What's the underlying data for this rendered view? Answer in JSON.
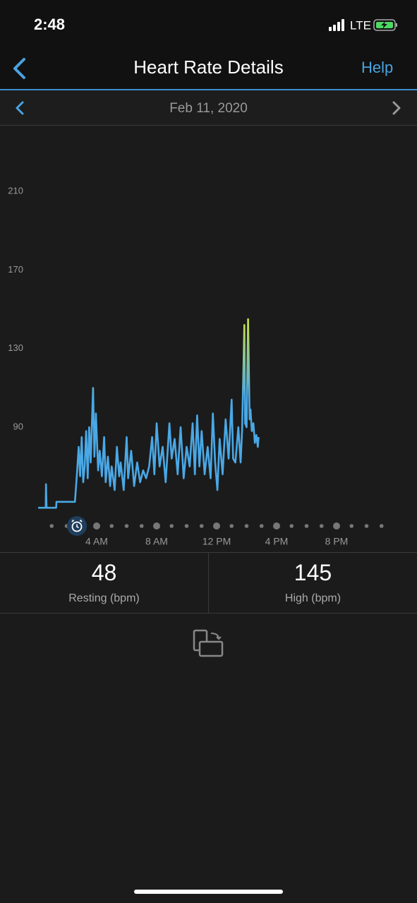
{
  "status_bar": {
    "time": "2:48",
    "network": "LTE"
  },
  "nav": {
    "title": "Heart Rate Details",
    "help": "Help"
  },
  "date_bar": {
    "date": "Feb 11, 2020"
  },
  "chart_data": {
    "type": "line",
    "x": [
      0.1,
      0.6,
      0.62,
      0.66,
      0.7,
      1.3,
      1.32,
      2.5,
      2.55,
      2.7,
      2.8,
      2.9,
      3.0,
      3.1,
      3.2,
      3.3,
      3.4,
      3.5,
      3.6,
      3.76,
      3.85,
      3.95,
      4.1,
      4.2,
      4.35,
      4.5,
      4.6,
      4.75,
      4.9,
      5.0,
      5.2,
      5.35,
      5.5,
      5.6,
      5.8,
      6.0,
      6.1,
      6.3,
      6.5,
      6.7,
      6.9,
      7.1,
      7.3,
      7.5,
      7.7,
      7.85,
      8.0,
      8.2,
      8.4,
      8.6,
      8.85,
      9.0,
      9.2,
      9.4,
      9.6,
      9.8,
      10.0,
      10.2,
      10.4,
      10.55,
      10.7,
      10.85,
      11.0,
      11.2,
      11.4,
      11.6,
      11.75,
      11.9,
      12.05,
      12.2,
      12.4,
      12.6,
      12.8,
      13.0,
      13.1,
      13.25,
      13.45,
      13.6,
      13.7,
      13.85,
      13.9,
      14.0,
      14.1,
      14.2,
      14.26,
      14.35,
      14.45,
      14.55,
      14.65,
      14.75,
      14.8
    ],
    "values": [
      49,
      49,
      61,
      49,
      49,
      49,
      52,
      52,
      52,
      68,
      80,
      65,
      85,
      62,
      70,
      88,
      64,
      90,
      72,
      110,
      75,
      97,
      68,
      78,
      65,
      85,
      62,
      75,
      60,
      70,
      58,
      80,
      65,
      72,
      58,
      85,
      64,
      78,
      60,
      72,
      62,
      68,
      64,
      70,
      85,
      66,
      92,
      70,
      80,
      62,
      92,
      74,
      84,
      66,
      90,
      64,
      80,
      70,
      92,
      66,
      96,
      70,
      88,
      66,
      80,
      64,
      97,
      72,
      58,
      84,
      66,
      94,
      74,
      104,
      74,
      72,
      90,
      72,
      88,
      142,
      92,
      90,
      145,
      94,
      99,
      88,
      92,
      82,
      86,
      80,
      85
    ],
    "color": "#4aa8e6",
    "high_color": "#c6e24a",
    "xlim": [
      0,
      24
    ],
    "xticks": [
      {
        "value": 4,
        "label": "4 AM"
      },
      {
        "value": 8,
        "label": "8 AM"
      },
      {
        "value": 12,
        "label": "12 PM"
      },
      {
        "value": 16,
        "label": "4 PM"
      },
      {
        "value": 20,
        "label": "8 PM"
      }
    ],
    "ylim": [
      40,
      230
    ],
    "yticks": [
      90,
      130,
      170,
      210
    ],
    "grid": false
  },
  "stats": [
    {
      "value": 48,
      "label": "Resting (bpm)"
    },
    {
      "value": 145,
      "label": "High (bpm)"
    }
  ]
}
